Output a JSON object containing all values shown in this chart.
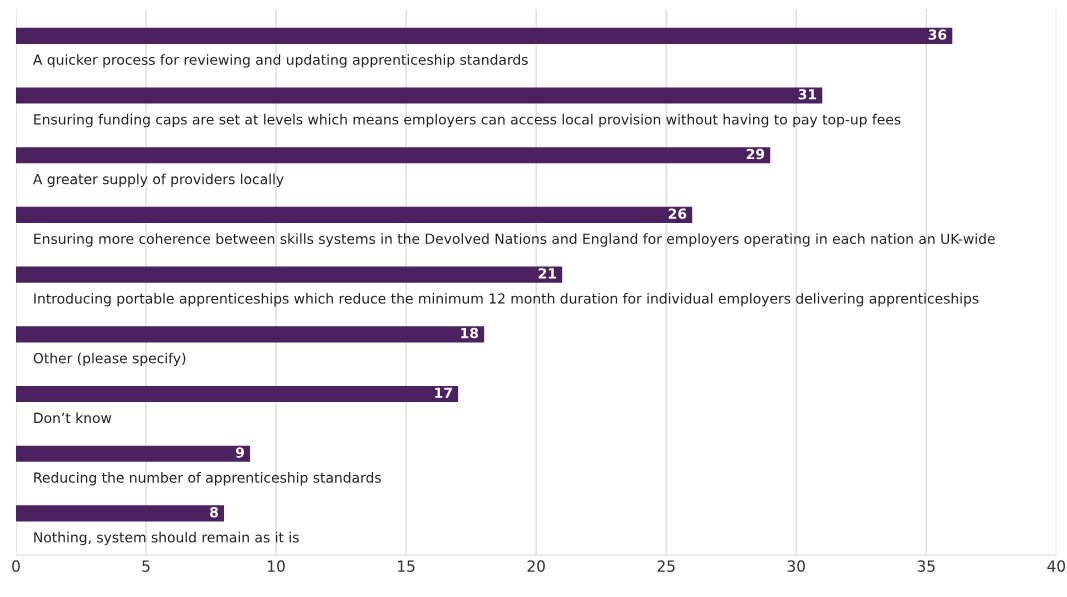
{
  "chart_data": {
    "type": "bar",
    "orientation": "horizontal",
    "categories": [
      "A quicker process for reviewing and updating apprenticeship standards",
      "Ensuring funding caps are set at levels which means employers can access local provision without having to pay top-up fees",
      "A greater supply of providers locally",
      "Ensuring more coherence between skills systems in the Devolved Nations and England for employers operating in each nation an UK-wide",
      "Introducing portable apprenticeships which reduce the minimum 12 month duration for individual employers delivering apprenticeships",
      "Other (please specify)",
      "Don’t know",
      "Reducing the number of apprenticeship standards",
      "Nothing, system should remain as it is"
    ],
    "values": [
      36,
      31,
      29,
      26,
      21,
      18,
      17,
      9,
      8
    ],
    "color": "#4b2160",
    "xlim": [
      0,
      40
    ],
    "xticks": [
      0,
      5,
      10,
      15,
      20,
      25,
      30,
      35,
      40
    ],
    "grid": "x",
    "data_labels": true,
    "legend": false
  }
}
